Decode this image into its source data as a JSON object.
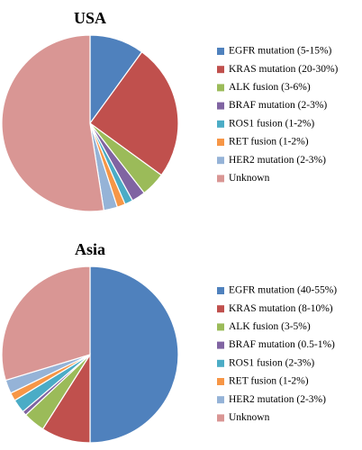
{
  "chart_data": [
    {
      "type": "pie",
      "title": "USA",
      "categories": [
        "EGFR mutation (5-15%)",
        "KRAS mutation (20-30%)",
        "ALK fusion (3-6%)",
        "BRAF mutation (2-3%)",
        "ROS1 fusion (1-2%)",
        "RET fusion (1-2%)",
        "HER2 mutation (2-3%)",
        "Unknown"
      ],
      "values": [
        10,
        25,
        4.5,
        2.5,
        1.5,
        1.5,
        2.5,
        52.5
      ],
      "colors": [
        "#4F81BD",
        "#C0504D",
        "#9BBB59",
        "#8064A2",
        "#4BACC6",
        "#F79646",
        "#95B3D7",
        "#D99694"
      ],
      "start_angle_deg": 0,
      "direction": "clockwise",
      "legend_position": "right"
    },
    {
      "type": "pie",
      "title": "Asia",
      "categories": [
        "EGFR mutation (40-55%)",
        "KRAS mutation (8-10%)",
        "ALK fusion (3-5%)",
        "BRAF mutation (0.5-1%)",
        "ROS1 fusion (2-3%)",
        "RET fusion (1-2%)",
        "HER2 mutation (2-3%)",
        "Unknown"
      ],
      "values": [
        50,
        9,
        4,
        0.8,
        2.5,
        1.5,
        2.5,
        29.7
      ],
      "colors": [
        "#4F81BD",
        "#C0504D",
        "#9BBB59",
        "#8064A2",
        "#4BACC6",
        "#F79646",
        "#95B3D7",
        "#D99694"
      ],
      "start_angle_deg": 0,
      "direction": "clockwise",
      "legend_position": "right"
    }
  ]
}
